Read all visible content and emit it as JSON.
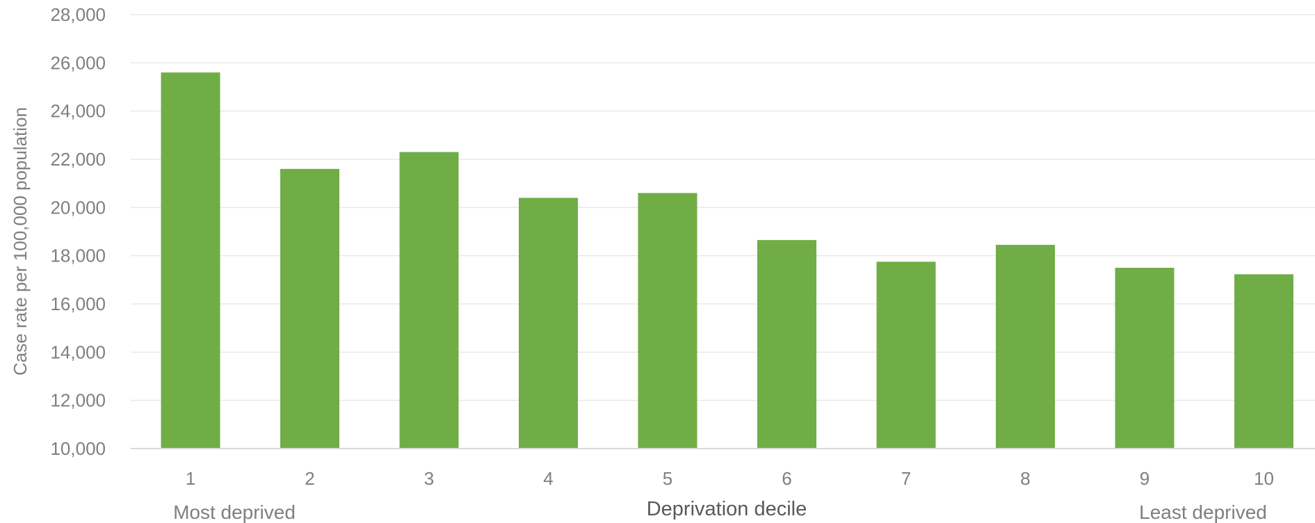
{
  "chart_data": {
    "type": "bar",
    "categories": [
      "1",
      "2",
      "3",
      "4",
      "5",
      "6",
      "7",
      "8",
      "9",
      "10"
    ],
    "values": [
      25600,
      21600,
      22300,
      20400,
      20600,
      18650,
      17750,
      18450,
      17500,
      17230
    ],
    "title": "",
    "xlabel": "Deprivation decile",
    "ylabel": "Case rate per 100,000 population",
    "ylim": [
      10000,
      28000
    ],
    "yticks": [
      "10,000",
      "12,000",
      "14,000",
      "16,000",
      "18,000",
      "20,000",
      "22,000",
      "24,000",
      "26,000",
      "28,000"
    ],
    "grid": true,
    "legend": "none",
    "bar_color": "#70ad47",
    "annotations": {
      "left": "Most deprived",
      "right": "Least deprived"
    }
  }
}
